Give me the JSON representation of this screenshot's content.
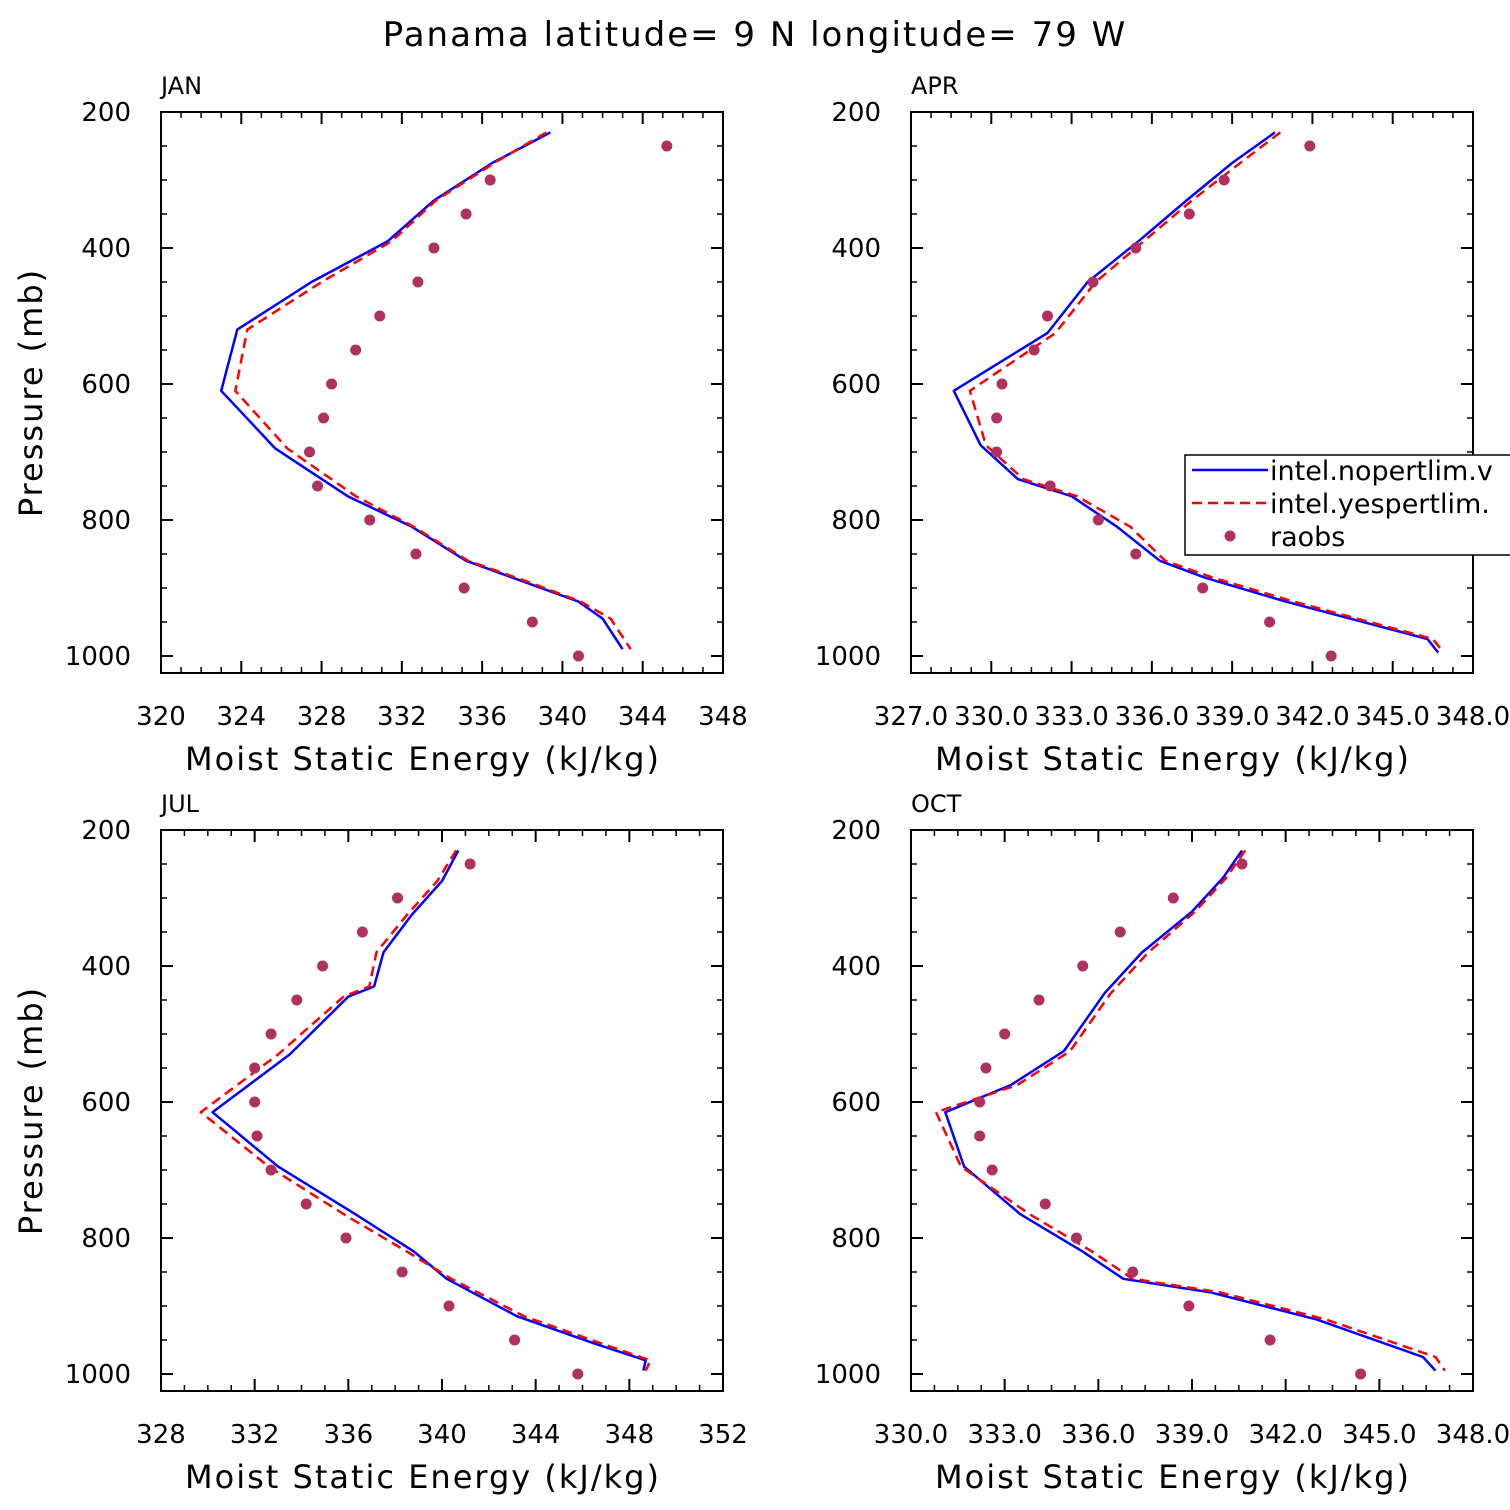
{
  "figure": {
    "title": "Panama  latitude= 9 N longitude= 79 W"
  },
  "colors": {
    "series1": "#0000ff",
    "series2": "#ff0000",
    "raobs": "#b03060",
    "axis": "#000000"
  },
  "legend": {
    "entries": [
      "intel.nopertlim.v",
      "intel.yespertlim.",
      "raobs"
    ]
  },
  "chart_data": [
    {
      "type": "line",
      "panel_title": "JAN",
      "xlabel": "Moist Static Energy (kJ/kg)",
      "ylabel": "Pressure (mb)",
      "xlim": [
        320,
        348
      ],
      "ylim": [
        1025,
        200
      ],
      "xticks": [
        320,
        324,
        328,
        332,
        336,
        340,
        344,
        348
      ],
      "xtick_labels": [
        "320",
        "324",
        "328",
        "332",
        "336",
        "340",
        "344",
        "348"
      ],
      "yticks": [
        200,
        400,
        600,
        800,
        1000
      ],
      "ytick_labels": [
        "200",
        "400",
        "600",
        "800",
        "1000"
      ],
      "series": [
        {
          "name": "intel.nopertlim.v",
          "style": "solid",
          "x": [
            339.4,
            336.5,
            333.6,
            331.3,
            327.5,
            323.8,
            323.0,
            325.7,
            329.3,
            332.5,
            335.2,
            338.0,
            340.8,
            342.0,
            343.0
          ],
          "y": [
            230,
            275,
            330,
            390,
            450,
            520,
            610,
            695,
            765,
            810,
            860,
            890,
            920,
            945,
            990
          ]
        },
        {
          "name": "intel.yespertlim.",
          "style": "dashed",
          "x": [
            339.2,
            336.6,
            333.7,
            331.5,
            328.0,
            324.3,
            323.7,
            326.3,
            329.7,
            332.6,
            335.3,
            338.2,
            340.9,
            342.4,
            343.4
          ],
          "y": [
            230,
            275,
            330,
            390,
            450,
            520,
            610,
            695,
            765,
            810,
            860,
            890,
            920,
            945,
            990
          ]
        },
        {
          "name": "raobs",
          "style": "points",
          "x": [
            345.2,
            336.4,
            335.2,
            333.6,
            332.8,
            330.9,
            329.7,
            328.5,
            328.1,
            327.4,
            327.8,
            330.4,
            332.7,
            335.1,
            338.5,
            340.8
          ],
          "y": [
            250,
            300,
            350,
            400,
            450,
            500,
            550,
            600,
            650,
            700,
            750,
            800,
            850,
            900,
            950,
            1000
          ]
        }
      ]
    },
    {
      "type": "line",
      "panel_title": "APR",
      "xlabel": "Moist Static Energy (kJ/kg)",
      "ylabel": "",
      "xlim": [
        327,
        348
      ],
      "ylim": [
        1025,
        200
      ],
      "xticks": [
        327,
        330,
        333,
        336,
        339,
        342,
        345,
        348
      ],
      "xtick_labels": [
        "327.0",
        "330.0",
        "333.0",
        "336.0",
        "339.0",
        "342.0",
        "345.0",
        "348.0"
      ],
      "yticks": [
        200,
        400,
        600,
        800,
        1000
      ],
      "ytick_labels": [
        "200",
        "400",
        "600",
        "800",
        "1000"
      ],
      "series": [
        {
          "name": "intel.nopertlim.v",
          "style": "solid",
          "x": [
            340.6,
            339.0,
            337.3,
            335.5,
            333.6,
            332.1,
            328.6,
            329.6,
            331.0,
            333.0,
            334.7,
            336.3,
            338.0,
            341.0,
            346.3,
            346.7
          ],
          "y": [
            230,
            275,
            330,
            390,
            450,
            525,
            610,
            690,
            740,
            765,
            810,
            860,
            885,
            920,
            975,
            995
          ]
        },
        {
          "name": "intel.yespertlim.",
          "style": "dashed",
          "x": [
            340.8,
            339.3,
            337.5,
            335.7,
            333.9,
            332.4,
            329.2,
            329.8,
            331.2,
            333.2,
            335.2,
            336.5,
            338.3,
            341.3,
            346.5,
            346.9
          ],
          "y": [
            230,
            275,
            330,
            390,
            450,
            525,
            610,
            690,
            740,
            765,
            810,
            860,
            885,
            920,
            975,
            995
          ]
        },
        {
          "name": "raobs",
          "style": "points",
          "x": [
            341.9,
            338.7,
            337.4,
            335.4,
            333.8,
            332.1,
            331.6,
            330.4,
            330.2,
            330.2,
            332.2,
            334.0,
            335.4,
            337.9,
            340.4,
            342.7
          ],
          "y": [
            250,
            300,
            350,
            400,
            450,
            500,
            550,
            600,
            650,
            700,
            750,
            800,
            850,
            900,
            950,
            1000
          ]
        }
      ]
    },
    {
      "type": "line",
      "panel_title": "JUL",
      "xlabel": "Moist Static Energy (kJ/kg)",
      "ylabel": "Pressure (mb)",
      "xlim": [
        328,
        352
      ],
      "ylim": [
        1025,
        200
      ],
      "xticks": [
        328,
        332,
        336,
        340,
        344,
        348,
        352
      ],
      "xtick_labels": [
        "328",
        "332",
        "336",
        "340",
        "344",
        "348",
        "352"
      ],
      "yticks": [
        200,
        400,
        600,
        800,
        1000
      ],
      "ytick_labels": [
        "200",
        "400",
        "600",
        "800",
        "1000"
      ],
      "series": [
        {
          "name": "intel.nopertlim.v",
          "style": "solid",
          "x": [
            340.7,
            340.0,
            338.7,
            337.5,
            337.1,
            336.0,
            333.5,
            330.2,
            333.0,
            336.3,
            338.8,
            340.2,
            343.2,
            346.5,
            348.7,
            348.6
          ],
          "y": [
            230,
            275,
            325,
            380,
            430,
            445,
            530,
            615,
            695,
            765,
            820,
            860,
            915,
            955,
            980,
            995
          ]
        },
        {
          "name": "intel.yespertlim.",
          "style": "dashed",
          "x": [
            340.6,
            339.8,
            338.5,
            337.2,
            336.9,
            335.8,
            333.0,
            329.7,
            332.6,
            335.8,
            338.5,
            340.4,
            343.5,
            346.8,
            348.9,
            348.7
          ],
          "y": [
            230,
            275,
            325,
            380,
            430,
            445,
            530,
            615,
            695,
            765,
            820,
            860,
            915,
            955,
            980,
            995
          ]
        },
        {
          "name": "raobs",
          "style": "points",
          "x": [
            341.2,
            338.1,
            336.6,
            334.9,
            333.8,
            332.7,
            332.0,
            332.0,
            332.1,
            332.7,
            334.2,
            335.9,
            338.3,
            340.3,
            343.1,
            345.8
          ],
          "y": [
            250,
            300,
            350,
            400,
            450,
            500,
            550,
            600,
            650,
            700,
            750,
            800,
            850,
            900,
            950,
            1000
          ]
        }
      ]
    },
    {
      "type": "line",
      "panel_title": "OCT",
      "xlabel": "Moist Static Energy (kJ/kg)",
      "ylabel": "",
      "xlim": [
        330,
        348
      ],
      "ylim": [
        1025,
        200
      ],
      "xticks": [
        330,
        333,
        336,
        339,
        342,
        345,
        348
      ],
      "xtick_labels": [
        "330.0",
        "333.0",
        "336.0",
        "339.0",
        "342.0",
        "345.0",
        "348.0"
      ],
      "yticks": [
        200,
        400,
        600,
        800,
        1000
      ],
      "ytick_labels": [
        "200",
        "400",
        "600",
        "800",
        "1000"
      ],
      "series": [
        {
          "name": "intel.nopertlim.v",
          "style": "solid",
          "x": [
            340.6,
            340.0,
            339.0,
            337.4,
            336.2,
            334.9,
            333.2,
            331.1,
            331.7,
            333.5,
            335.5,
            336.8,
            339.6,
            343.0,
            346.4,
            346.8
          ],
          "y": [
            230,
            270,
            320,
            380,
            440,
            525,
            575,
            615,
            695,
            765,
            820,
            860,
            880,
            920,
            975,
            995
          ]
        },
        {
          "name": "intel.yespertlim.",
          "style": "dashed",
          "x": [
            340.7,
            340.1,
            339.1,
            337.6,
            336.4,
            335.1,
            333.4,
            330.8,
            331.6,
            333.8,
            335.8,
            337.1,
            339.9,
            343.3,
            346.8,
            347.1
          ],
          "y": [
            230,
            270,
            320,
            380,
            440,
            525,
            575,
            615,
            695,
            765,
            820,
            860,
            880,
            920,
            975,
            995
          ]
        },
        {
          "name": "raobs",
          "style": "points",
          "x": [
            340.6,
            338.4,
            336.7,
            335.5,
            334.1,
            333.0,
            332.4,
            332.2,
            332.2,
            332.6,
            334.3,
            335.3,
            337.1,
            338.9,
            341.5,
            344.4
          ],
          "y": [
            250,
            300,
            350,
            400,
            450,
            500,
            550,
            600,
            650,
            700,
            750,
            800,
            850,
            900,
            950,
            1000
          ]
        }
      ]
    }
  ]
}
